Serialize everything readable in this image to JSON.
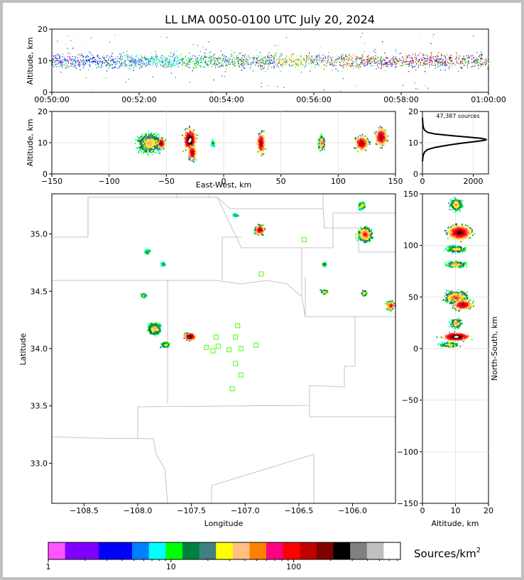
{
  "chart_data": [
    {
      "panel": "time-height",
      "type": "scatter",
      "title": "LL LMA 0050-0100 UTC July 20, 2024",
      "xlabel": "",
      "ylabel": "Altitude, km",
      "ylim": [
        0,
        20
      ],
      "yticks": [
        "0",
        "10",
        "20"
      ],
      "xticks": [
        "00:50:00",
        "00:52:00",
        "00:54:00",
        "00:56:00",
        "00:58:00",
        "01:00:00"
      ],
      "xlim_minutes": [
        0,
        10
      ],
      "altitude_mode_km": 10
    },
    {
      "panel": "east-west-altitude",
      "type": "heatmap",
      "xlabel": "East-West, km",
      "ylabel": "Altitude, km",
      "xlim": [
        -150,
        150
      ],
      "ylim": [
        0,
        20
      ],
      "xticks": [
        "−150",
        "−100",
        "−50",
        "0",
        "50",
        "100",
        "150"
      ],
      "yticks": [
        "0",
        "10",
        "20"
      ],
      "cells": [
        {
          "x": -65,
          "y": 10,
          "w": 18,
          "h": 5,
          "peak": 0.55
        },
        {
          "x": -55,
          "y": 10,
          "w": 6,
          "h": 3,
          "peak": 0.85
        },
        {
          "x": -30,
          "y": 11,
          "w": 9,
          "h": 6,
          "peak": 1.0
        },
        {
          "x": -28,
          "y": 7,
          "w": 6,
          "h": 4,
          "peak": 0.85
        },
        {
          "x": -10,
          "y": 10,
          "w": 3,
          "h": 2,
          "peak": 0.35
        },
        {
          "x": 32,
          "y": 10,
          "w": 6,
          "h": 6,
          "peak": 0.85
        },
        {
          "x": 85,
          "y": 10,
          "w": 5,
          "h": 4,
          "peak": 0.6
        },
        {
          "x": 120,
          "y": 10,
          "w": 10,
          "h": 4,
          "peak": 0.85
        },
        {
          "x": 137,
          "y": 12,
          "w": 9,
          "h": 5,
          "peak": 0.85
        }
      ]
    },
    {
      "panel": "altitude-histogram",
      "type": "line",
      "annotation": "47,387 sources",
      "xlim": [
        0,
        2600
      ],
      "ylim": [
        0,
        20
      ],
      "xticks": [
        "0",
        "2000"
      ],
      "yticks": [
        "0",
        "10",
        "20"
      ],
      "x": [
        0,
        10,
        30,
        80,
        200,
        500,
        1000,
        1500,
        2000,
        2400,
        2530,
        2300,
        1800,
        1100,
        500,
        200,
        80,
        30,
        10,
        0
      ],
      "y": [
        4,
        5,
        6,
        7,
        7.8,
        8.5,
        9.2,
        9.8,
        10.3,
        10.7,
        11,
        11.4,
        11.8,
        12.3,
        12.8,
        13.3,
        14,
        15,
        16.5,
        18
      ]
    },
    {
      "panel": "plan-view",
      "type": "heatmap",
      "xlabel": "Longitude",
      "ylabel": "Latitude",
      "xlim": [
        -108.8,
        -105.6
      ],
      "ylim": [
        32.65,
        35.35
      ],
      "xticks": [
        "−108.5",
        "−108.0",
        "−107.5",
        "−107.0",
        "−106.5",
        "−106.0"
      ],
      "yticks": [
        "33.0",
        "33.5",
        "34.0",
        "34.5",
        "35.0"
      ],
      "cells": [
        {
          "lon": -106.87,
          "lat": 35.04,
          "w": 0.07,
          "h": 0.07,
          "peak": 0.85
        },
        {
          "lon": -105.89,
          "lat": 35.0,
          "w": 0.1,
          "h": 0.1,
          "peak": 0.7
        },
        {
          "lon": -105.92,
          "lat": 35.25,
          "w": 0.05,
          "h": 0.05,
          "peak": 0.55
        },
        {
          "lon": -105.65,
          "lat": 34.38,
          "w": 0.07,
          "h": 0.06,
          "peak": 0.75
        },
        {
          "lon": -105.9,
          "lat": 34.49,
          "w": 0.04,
          "h": 0.04,
          "peak": 0.55
        },
        {
          "lon": -106.27,
          "lat": 34.5,
          "w": 0.05,
          "h": 0.03,
          "peak": 0.55
        },
        {
          "lon": -106.27,
          "lat": 34.74,
          "w": 0.03,
          "h": 0.03,
          "peak": 0.45
        },
        {
          "lon": -107.52,
          "lat": 34.11,
          "w": 0.08,
          "h": 0.05,
          "peak": 1.0
        },
        {
          "lon": -107.85,
          "lat": 34.18,
          "w": 0.1,
          "h": 0.08,
          "peak": 0.55
        },
        {
          "lon": -107.75,
          "lat": 34.04,
          "w": 0.06,
          "h": 0.04,
          "peak": 0.5
        },
        {
          "lon": -107.92,
          "lat": 34.85,
          "w": 0.04,
          "h": 0.03,
          "peak": 0.4
        },
        {
          "lon": -107.77,
          "lat": 34.74,
          "w": 0.03,
          "h": 0.03,
          "peak": 0.4
        },
        {
          "lon": -107.95,
          "lat": 34.47,
          "w": 0.04,
          "h": 0.03,
          "peak": 0.45
        },
        {
          "lon": -107.1,
          "lat": 35.17,
          "w": 0.04,
          "h": 0.02,
          "peak": 0.35
        }
      ],
      "stations": [
        [
          -106.45,
          34.95
        ],
        [
          -106.85,
          34.65
        ],
        [
          -107.07,
          34.2
        ],
        [
          -107.27,
          34.1
        ],
        [
          -107.09,
          34.1
        ],
        [
          -107.25,
          34.02
        ],
        [
          -107.15,
          33.99
        ],
        [
          -107.04,
          34.0
        ],
        [
          -107.36,
          34.01
        ],
        [
          -107.3,
          33.98
        ],
        [
          -107.09,
          33.87
        ],
        [
          -107.04,
          33.77
        ],
        [
          -107.12,
          33.65
        ],
        [
          -106.9,
          34.03
        ],
        [
          -105.95,
          34.98
        ]
      ]
    },
    {
      "panel": "north-south-altitude",
      "type": "heatmap",
      "xlabel": "Altitude, km",
      "ylabel": "North-South, km",
      "xlim": [
        0,
        20
      ],
      "ylim": [
        -150,
        150
      ],
      "xticks": [
        "0",
        "10",
        "20"
      ],
      "yticks": [
        "−150",
        "−100",
        "−50",
        "0",
        "50",
        "100",
        "150"
      ],
      "cells": [
        {
          "alt": 10,
          "ns": 140,
          "w": 3,
          "h": 10,
          "peak": 0.55
        },
        {
          "alt": 11,
          "ns": 113,
          "w": 6,
          "h": 12,
          "peak": 0.9
        },
        {
          "alt": 10,
          "ns": 97,
          "w": 5,
          "h": 6,
          "peak": 0.5
        },
        {
          "alt": 10,
          "ns": 82,
          "w": 5,
          "h": 5,
          "peak": 0.55
        },
        {
          "alt": 10,
          "ns": 50,
          "w": 6,
          "h": 10,
          "peak": 0.65
        },
        {
          "alt": 12,
          "ns": 43,
          "w": 5,
          "h": 8,
          "peak": 0.85
        },
        {
          "alt": 10,
          "ns": 25,
          "w": 3,
          "h": 8,
          "peak": 0.55
        },
        {
          "alt": 10,
          "ns": 12,
          "w": 7,
          "h": 7,
          "peak": 1.0
        },
        {
          "alt": 8,
          "ns": 4,
          "w": 5,
          "h": 4,
          "peak": 0.5
        }
      ]
    },
    {
      "panel": "colorbar",
      "type": "bar",
      "title": "Sources/km",
      "title_superscript": "2",
      "scale": "log",
      "ticks": [
        {
          "label": "1",
          "value": 1
        },
        {
          "label": "10",
          "value": 10
        },
        {
          "label": "100",
          "value": 100
        }
      ],
      "colors": [
        "#ff55ff",
        "#8000ff",
        "#8000ff",
        "#0000ff",
        "#0000ff",
        "#0080ff",
        "#00ffff",
        "#00ff00",
        "#008040",
        "#408080",
        "#ffff00",
        "#ffc080",
        "#ff8000",
        "#ff0080",
        "#ff0000",
        "#c00000",
        "#800000",
        "#000000",
        "#808080",
        "#c0c0c0",
        "#ffffff"
      ]
    }
  ]
}
